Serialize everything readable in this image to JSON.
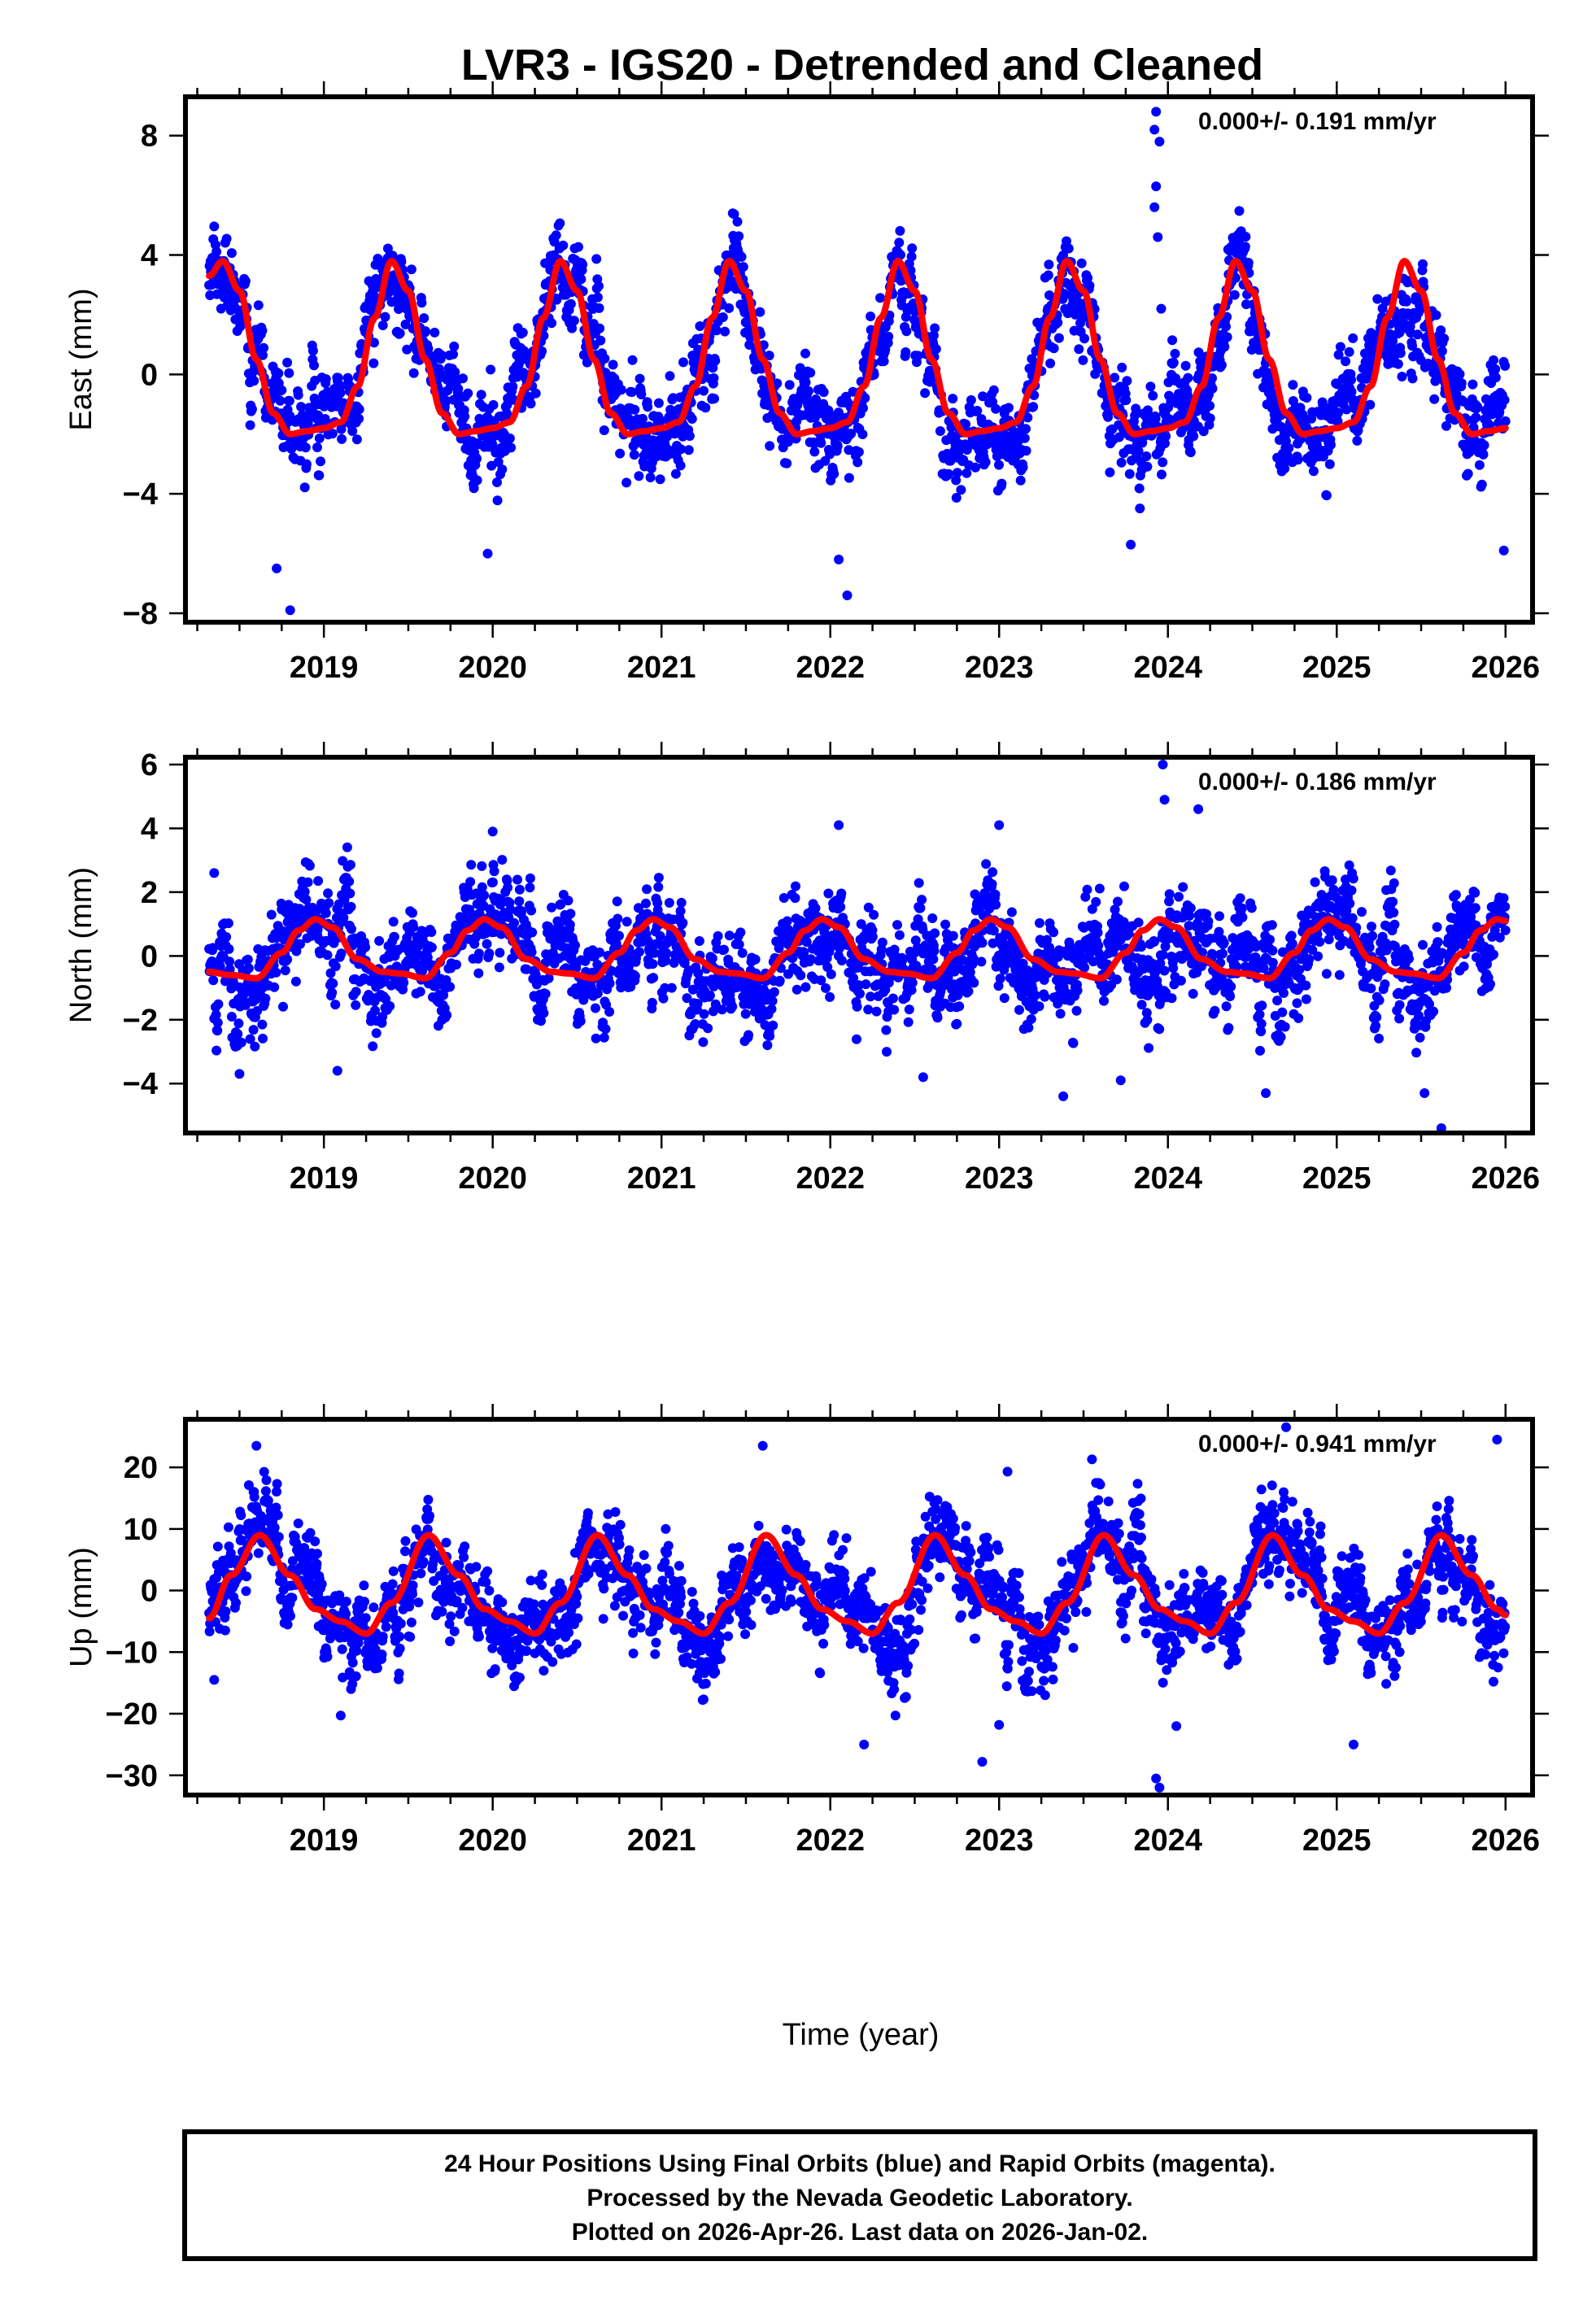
{
  "chart_data": {
    "type": "scatter",
    "title": "LVR3 - IGS20 - Detrended and Cleaned",
    "xlabel": "Time (year)",
    "xlim": [
      2018.18,
      2026.16
    ],
    "x_ticks": [
      2019,
      2020,
      2021,
      2022,
      2023,
      2024,
      2025,
      2026
    ],
    "x_minor_step": 0.25,
    "data_start": 2018.32,
    "data_end": 2026.0,
    "legend": "none",
    "grid": false,
    "colors": {
      "observations": "#0000ff",
      "model": "#ff0000",
      "frame": "#000000"
    },
    "panels": [
      {
        "name": "east",
        "ylabel": "East (mm)",
        "ylim": [
          -8.3,
          9.3
        ],
        "y_ticks": [
          -8,
          -4,
          0,
          4,
          8
        ],
        "y_minor_step": 2,
        "rate_text": "0.000+/- 0.191 mm/yr",
        "noise_sigma": 1.0,
        "model": {
          "x": [
            2018.32,
            2018.4,
            2018.5,
            2018.6,
            2018.7,
            2018.8,
            2018.9,
            2019.0,
            2019.1,
            2019.2,
            2019.3,
            2019.4,
            2019.5,
            2019.6,
            2019.7,
            2019.8,
            2019.9,
            2020.0,
            2020.1,
            2020.2,
            2020.3,
            2020.4,
            2020.5,
            2020.6,
            2020.7,
            2020.8,
            2020.9,
            2021.0,
            2021.1,
            2021.2,
            2021.3,
            2021.4,
            2021.5,
            2021.6,
            2021.7,
            2021.8,
            2021.9,
            2022.0,
            2022.1,
            2022.2,
            2022.3,
            2022.4,
            2022.5,
            2022.6,
            2022.7,
            2022.8,
            2022.9,
            2023.0,
            2023.1,
            2023.2,
            2023.3,
            2023.4,
            2023.5,
            2023.6,
            2023.7,
            2023.8,
            2023.9,
            2024.0,
            2024.1,
            2024.2,
            2024.3,
            2024.4,
            2024.5,
            2024.6,
            2024.7,
            2024.8,
            2024.9,
            2025.0,
            2025.1,
            2025.2,
            2025.3,
            2025.4,
            2025.5,
            2025.6,
            2025.7,
            2025.8,
            2025.9,
            2026.0
          ],
          "y": [
            3.3,
            3.8,
            2.8,
            0.5,
            -1.3,
            -2.0,
            -1.9,
            -1.8,
            -1.6,
            -0.4,
            1.9,
            3.8,
            2.8,
            0.5,
            -1.3,
            -2.0,
            -1.9,
            -1.8,
            -1.6,
            -0.4,
            1.9,
            3.8,
            2.8,
            0.5,
            -1.3,
            -2.0,
            -1.9,
            -1.8,
            -1.6,
            -0.4,
            1.9,
            3.8,
            2.8,
            0.5,
            -1.3,
            -2.0,
            -1.9,
            -1.8,
            -1.6,
            -0.4,
            1.9,
            3.8,
            2.8,
            0.5,
            -1.3,
            -2.0,
            -1.9,
            -1.8,
            -1.6,
            -0.4,
            1.9,
            3.8,
            2.8,
            0.5,
            -1.3,
            -2.0,
            -1.9,
            -1.8,
            -1.6,
            -0.4,
            1.9,
            3.8,
            2.8,
            0.5,
            -1.3,
            -2.0,
            -1.9,
            -1.8,
            -1.6,
            -0.4,
            1.9,
            3.8,
            2.8,
            0.5,
            -1.3,
            -2.0,
            -1.9,
            -1.8
          ]
        },
        "outliers": [
          [
            2023.93,
            8.8
          ],
          [
            2023.92,
            8.2
          ],
          [
            2023.95,
            7.8
          ],
          [
            2023.93,
            6.3
          ],
          [
            2023.92,
            5.6
          ],
          [
            2023.94,
            4.6
          ],
          [
            2023.96,
            2.2
          ],
          [
            2018.8,
            -7.9
          ],
          [
            2022.1,
            -7.4
          ],
          [
            2022.05,
            -6.2
          ],
          [
            2019.97,
            -6.0
          ],
          [
            2023.78,
            -5.7
          ],
          [
            2025.99,
            -5.9
          ],
          [
            2018.72,
            -6.5
          ]
        ]
      },
      {
        "name": "north",
        "ylabel": "North (mm)",
        "ylim": [
          -5.55,
          6.23
        ],
        "y_ticks": [
          -4,
          -2,
          0,
          2,
          4,
          6
        ],
        "y_minor_step": 1,
        "rate_text": "0.000+/- 0.186 mm/yr",
        "noise_sigma": 1.0,
        "model": {
          "x": [
            2018.32,
            2018.45,
            2018.6,
            2018.75,
            2018.85,
            2018.95,
            2019.05,
            2019.2,
            2019.35,
            2019.45,
            2019.6,
            2019.75,
            2019.85,
            2019.95,
            2020.05,
            2020.2,
            2020.35,
            2020.45,
            2020.6,
            2020.75,
            2020.85,
            2020.95,
            2021.05,
            2021.2,
            2021.35,
            2021.45,
            2021.6,
            2021.75,
            2021.85,
            2021.95,
            2022.05,
            2022.2,
            2022.35,
            2022.45,
            2022.6,
            2022.75,
            2022.85,
            2022.95,
            2023.05,
            2023.2,
            2023.35,
            2023.45,
            2023.6,
            2023.75,
            2023.85,
            2023.95,
            2024.05,
            2024.2,
            2024.35,
            2024.45,
            2024.6,
            2024.75,
            2024.85,
            2024.95,
            2025.05,
            2025.2,
            2025.35,
            2025.45,
            2025.6,
            2025.75,
            2025.85,
            2025.95,
            2026.0
          ],
          "y": [
            -0.5,
            -0.6,
            -0.7,
            0.1,
            0.8,
            1.15,
            0.9,
            -0.1,
            -0.5,
            -0.55,
            -0.7,
            0.1,
            0.8,
            1.15,
            0.9,
            -0.1,
            -0.5,
            -0.55,
            -0.7,
            0.1,
            0.8,
            1.15,
            0.9,
            -0.1,
            -0.5,
            -0.55,
            -0.7,
            0.1,
            0.8,
            1.15,
            0.9,
            -0.1,
            -0.5,
            -0.55,
            -0.7,
            0.1,
            0.8,
            1.15,
            0.9,
            -0.1,
            -0.5,
            -0.55,
            -0.7,
            0.1,
            0.8,
            1.15,
            0.9,
            -0.1,
            -0.5,
            -0.55,
            -0.7,
            0.1,
            0.8,
            1.15,
            0.9,
            -0.1,
            -0.5,
            -0.55,
            -0.7,
            0.1,
            0.8,
            1.15,
            1.1
          ]
        },
        "outliers": [
          [
            2023.97,
            6.0
          ],
          [
            2023.98,
            4.9
          ],
          [
            2024.18,
            4.6
          ],
          [
            2025.62,
            -5.4
          ],
          [
            2023.38,
            -4.4
          ],
          [
            2025.52,
            -4.3
          ],
          [
            2024.58,
            -4.3
          ],
          [
            2023.72,
            -3.9
          ],
          [
            2022.55,
            -3.8
          ],
          [
            2019.08,
            -3.6
          ],
          [
            2018.5,
            -3.7
          ],
          [
            2020.0,
            3.9
          ],
          [
            2022.05,
            4.1
          ],
          [
            2023.0,
            4.1
          ],
          [
            2018.35,
            2.6
          ]
        ]
      },
      {
        "name": "up",
        "ylabel": "Up (mm)",
        "ylim": [
          -33.2,
          27.8
        ],
        "y_ticks": [
          -30,
          -20,
          -10,
          0,
          10,
          20
        ],
        "y_minor_step": 5,
        "rate_text": "0.000+/- 0.941 mm/yr",
        "noise_sigma": 4.8,
        "model": {
          "x": [
            2018.32,
            2018.45,
            2018.62,
            2018.8,
            2018.95,
            2019.1,
            2019.25,
            2019.4,
            2019.62,
            2019.8,
            2019.95,
            2020.1,
            2020.25,
            2020.4,
            2020.62,
            2020.8,
            2020.95,
            2021.1,
            2021.25,
            2021.4,
            2021.62,
            2021.8,
            2021.95,
            2022.1,
            2022.25,
            2022.4,
            2022.62,
            2022.8,
            2022.95,
            2023.1,
            2023.25,
            2023.4,
            2023.62,
            2023.8,
            2023.95,
            2024.1,
            2024.25,
            2024.4,
            2024.62,
            2024.8,
            2024.95,
            2025.1,
            2025.25,
            2025.4,
            2025.62,
            2025.8,
            2025.95,
            2026.0
          ],
          "y": [
            -4.5,
            2.5,
            9.0,
            2.5,
            -3.0,
            -5.0,
            -7.0,
            -2.0,
            9.0,
            2.5,
            -3.0,
            -5.0,
            -7.0,
            -2.0,
            9.0,
            2.5,
            -3.0,
            -5.0,
            -7.0,
            -2.0,
            9.0,
            2.5,
            -3.0,
            -5.0,
            -7.0,
            -2.0,
            9.0,
            2.5,
            -3.0,
            -5.0,
            -7.0,
            -2.0,
            9.0,
            2.5,
            -3.0,
            -5.0,
            -7.0,
            -2.0,
            9.0,
            2.5,
            -3.0,
            -5.0,
            -7.0,
            -2.0,
            9.0,
            2.5,
            -3.0,
            -4.0
          ]
        },
        "outliers": [
          [
            2018.6,
            23.5
          ],
          [
            2021.6,
            23.5
          ],
          [
            2024.7,
            26.5
          ],
          [
            2025.95,
            24.5
          ],
          [
            2023.95,
            -32.0
          ],
          [
            2023.93,
            -30.5
          ],
          [
            2022.9,
            -27.8
          ],
          [
            2022.2,
            -25.0
          ],
          [
            2025.1,
            -25.0
          ],
          [
            2019.1,
            -20.3
          ],
          [
            2024.05,
            -22.0
          ],
          [
            2023.0,
            -21.8
          ],
          [
            2018.35,
            -14.5
          ],
          [
            2023.05,
            19.3
          ],
          [
            2023.55,
            21.3
          ]
        ]
      }
    ],
    "footer_lines": [
      "24 Hour Positions Using Final Orbits (blue) and Rapid Orbits (magenta).",
      "Processed by the Nevada Geodetic Laboratory.",
      "Plotted on 2026-Apr-26. Last data on 2026-Jan-02."
    ]
  }
}
